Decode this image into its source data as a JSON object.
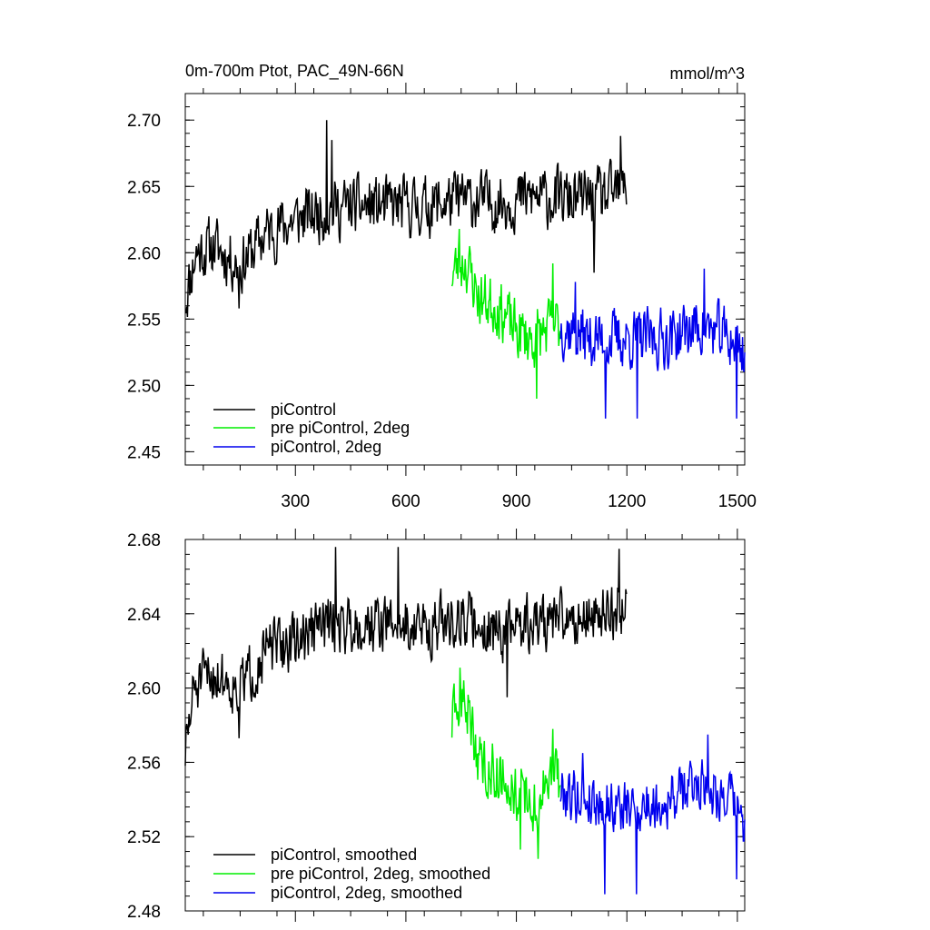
{
  "charts": [
    {
      "id": "raw",
      "type": "line",
      "title": "0m-700m Ptot, PAC_49N-66N",
      "units": "mmol/m^3",
      "xlim": [
        1,
        1520
      ],
      "ylim": [
        2.44,
        2.72
      ],
      "xticks": [
        300,
        600,
        900,
        1200,
        1500
      ],
      "xtick_labels": [
        "300",
        "600",
        "900",
        "1200",
        "1500"
      ],
      "yticks": [
        2.45,
        2.5,
        2.55,
        2.6,
        2.65,
        2.7
      ],
      "ytick_labels": [
        "2.45",
        "2.50",
        "2.55",
        "2.60",
        "2.65",
        "2.70"
      ],
      "legend_position": "bottom-left",
      "series": [
        {
          "name": "piControl",
          "label": "piControl",
          "color": "#000000",
          "x_start": 1,
          "x_end": 1200,
          "control": [
            [
              1,
              2.565
            ],
            [
              30,
              2.6
            ],
            [
              80,
              2.605
            ],
            [
              150,
              2.59
            ],
            [
              220,
              2.615
            ],
            [
              300,
              2.625
            ],
            [
              380,
              2.632
            ],
            [
              450,
              2.635
            ],
            [
              550,
              2.635
            ],
            [
              650,
              2.635
            ],
            [
              750,
              2.64
            ],
            [
              850,
              2.638
            ],
            [
              950,
              2.642
            ],
            [
              1050,
              2.64
            ],
            [
              1150,
              2.642
            ],
            [
              1200,
              2.65
            ]
          ],
          "noise": 0.02,
          "seed": 11,
          "spikes": [
            [
              385,
              2.7
            ],
            [
              148,
              2.558
            ],
            [
              1112,
              2.585
            ],
            [
              1183,
              2.688
            ],
            [
              400,
              2.685
            ]
          ]
        },
        {
          "name": "pre-piControl-2deg",
          "label": "pre piControl, 2deg",
          "color": "#00ee00",
          "x_start": 725,
          "x_end": 1020,
          "control": [
            [
              725,
              2.585
            ],
            [
              760,
              2.595
            ],
            [
              800,
              2.565
            ],
            [
              850,
              2.56
            ],
            [
              900,
              2.54
            ],
            [
              950,
              2.535
            ],
            [
              1000,
              2.545
            ],
            [
              1020,
              2.545
            ]
          ],
          "noise": 0.02,
          "seed": 23,
          "spikes": [
            [
              745,
              2.618
            ],
            [
              955,
              2.49
            ],
            [
              1000,
              2.592
            ]
          ]
        },
        {
          "name": "piControl-2deg",
          "label": "piControl, 2deg",
          "color": "#0000ee",
          "x_start": 1020,
          "x_end": 1520,
          "control": [
            [
              1020,
              2.545
            ],
            [
              1100,
              2.535
            ],
            [
              1200,
              2.535
            ],
            [
              1300,
              2.535
            ],
            [
              1400,
              2.545
            ],
            [
              1480,
              2.535
            ],
            [
              1520,
              2.525
            ]
          ],
          "noise": 0.02,
          "seed": 37,
          "spikes": [
            [
              1142,
              2.475
            ],
            [
              1228,
              2.475
            ],
            [
              1498,
              2.475
            ],
            [
              1410,
              2.588
            ],
            [
              1060,
              2.578
            ]
          ]
        }
      ]
    },
    {
      "id": "smoothed",
      "type": "line",
      "title": "",
      "units": "",
      "xlim": [
        1,
        1520
      ],
      "ylim": [
        2.48,
        2.68
      ],
      "xticks": [
        300,
        600,
        900,
        1200,
        1500
      ],
      "xtick_labels": [],
      "yticks": [
        2.48,
        2.52,
        2.56,
        2.6,
        2.64,
        2.68
      ],
      "ytick_labels": [
        "2.48",
        "2.52",
        "2.56",
        "2.60",
        "2.64",
        "2.68"
      ],
      "legend_position": "bottom-left",
      "series": [
        {
          "name": "piControl-smoothed",
          "label": "piControl, smoothed",
          "color": "#000000",
          "x_start": 1,
          "x_end": 1200,
          "control": [
            [
              1,
              2.565
            ],
            [
              25,
              2.6
            ],
            [
              80,
              2.608
            ],
            [
              150,
              2.6
            ],
            [
              220,
              2.62
            ],
            [
              300,
              2.625
            ],
            [
              380,
              2.635
            ],
            [
              450,
              2.635
            ],
            [
              550,
              2.635
            ],
            [
              650,
              2.632
            ],
            [
              750,
              2.638
            ],
            [
              850,
              2.63
            ],
            [
              950,
              2.635
            ],
            [
              1050,
              2.638
            ],
            [
              1150,
              2.64
            ],
            [
              1200,
              2.645
            ]
          ],
          "noise": 0.014,
          "seed": 51,
          "spikes": [
            [
              410,
              2.676
            ],
            [
              580,
              2.676
            ],
            [
              1180,
              2.675
            ],
            [
              875,
              2.595
            ],
            [
              148,
              2.573
            ]
          ]
        },
        {
          "name": "pre-piControl-2deg-smoothed",
          "label": "pre piControl, 2deg, smoothed",
          "color": "#00ee00",
          "x_start": 725,
          "x_end": 1020,
          "control": [
            [
              725,
              2.58
            ],
            [
              760,
              2.595
            ],
            [
              800,
              2.56
            ],
            [
              850,
              2.555
            ],
            [
              900,
              2.545
            ],
            [
              950,
              2.535
            ],
            [
              1000,
              2.555
            ],
            [
              1020,
              2.55
            ]
          ],
          "noise": 0.014,
          "seed": 63,
          "spikes": [
            [
              748,
              2.611
            ],
            [
              912,
              2.513
            ],
            [
              960,
              2.508
            ],
            [
              1000,
              2.578
            ]
          ]
        },
        {
          "name": "piControl-2deg-smoothed",
          "label": "piControl, 2deg, smoothed",
          "color": "#0000ee",
          "x_start": 1020,
          "x_end": 1520,
          "control": [
            [
              1020,
              2.545
            ],
            [
              1100,
              2.54
            ],
            [
              1200,
              2.535
            ],
            [
              1300,
              2.538
            ],
            [
              1400,
              2.55
            ],
            [
              1480,
              2.54
            ],
            [
              1520,
              2.528
            ]
          ],
          "noise": 0.013,
          "seed": 79,
          "spikes": [
            [
              1140,
              2.489
            ],
            [
              1225,
              2.489
            ],
            [
              1497,
              2.497
            ],
            [
              1420,
              2.575
            ],
            [
              1080,
              2.565
            ]
          ]
        }
      ]
    }
  ]
}
